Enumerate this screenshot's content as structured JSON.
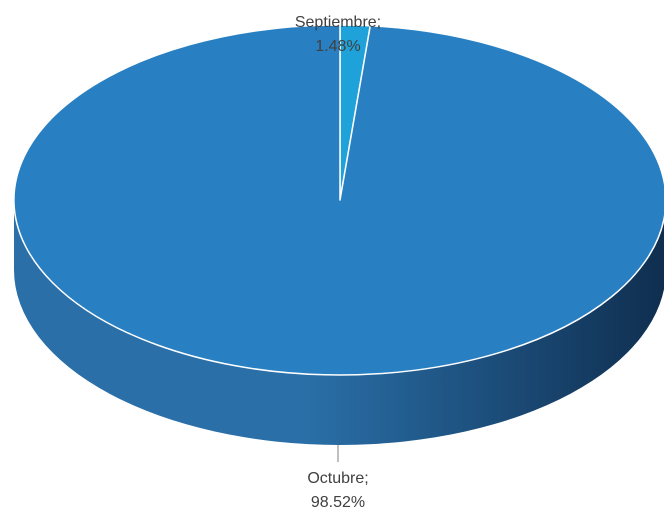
{
  "chart_data": {
    "type": "pie",
    "style": "3d",
    "categories": [
      "Septiembre",
      "Octubre"
    ],
    "values": [
      1.48,
      98.52
    ],
    "data_labels": [
      {
        "name": "Septiembre;",
        "value": "1.48%"
      },
      {
        "name": "Octubre;",
        "value": "98.52%"
      }
    ],
    "colors": [
      "#1FA1D9",
      "#2880C3"
    ],
    "side_colors": {
      "light": "#2A6FA8",
      "dark": "#0F2E4F"
    },
    "legend": "none"
  }
}
